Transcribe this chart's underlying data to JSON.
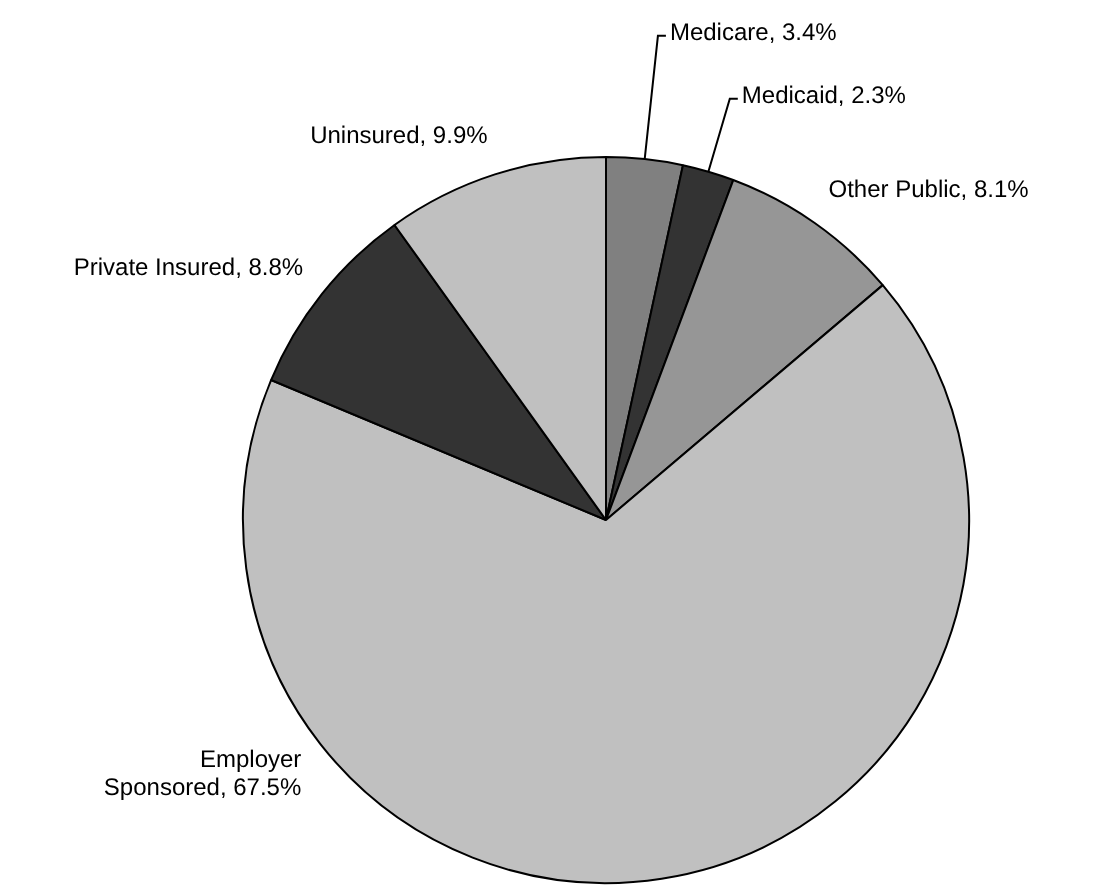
{
  "chart_data": {
    "type": "pie",
    "categories": [
      "Medicare",
      "Medicaid",
      "Other Public",
      "Employer Sponsored",
      "Private Insured",
      "Uninsured"
    ],
    "values": [
      3.4,
      2.3,
      8.1,
      67.5,
      8.8,
      9.9
    ],
    "colors": [
      "#808080",
      "#333333",
      "#969696",
      "#c0c0c0",
      "#333333",
      "#c0c0c0"
    ],
    "value_labels": [
      "3.4%",
      "2.3%",
      "8.1%",
      "67.5%",
      "8.8%",
      "9.9%"
    ],
    "legend": false
  }
}
